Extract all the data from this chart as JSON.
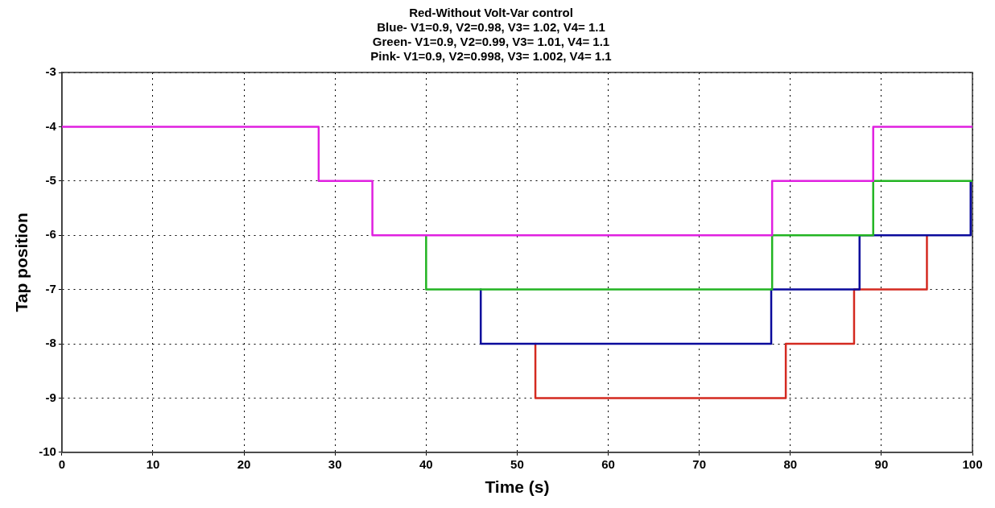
{
  "chart_data": {
    "type": "step",
    "title": [
      "Red-Without Volt-Var control",
      "Blue- V1=0.9, V2=0.98, V3= 1.02, V4= 1.1",
      "Green- V1=0.9, V2=0.99, V3= 1.01, V4= 1.1",
      "Pink- V1=0.9, V2=0.998, V3= 1.002, V4= 1.1"
    ],
    "xlabel": "Time (s)",
    "ylabel": "Tap position",
    "xlim": [
      0,
      100
    ],
    "xticks": [
      0,
      10,
      20,
      30,
      40,
      50,
      60,
      70,
      80,
      90,
      100
    ],
    "ylim": [
      -10,
      -3
    ],
    "yticks": [
      -10,
      -9,
      -8,
      -7,
      -6,
      -5,
      -4,
      -3
    ],
    "grid": true,
    "legend": false,
    "line_style": "solid",
    "marker": "none",
    "series": [
      {
        "color": "#e020e0",
        "x": [
          0,
          28.2,
          34.1,
          78,
          89.1,
          100
        ],
        "values": [
          -4,
          -5,
          -6,
          -5,
          -4,
          -4
        ]
      },
      {
        "color": "#22b422",
        "x": [
          40,
          40,
          78,
          89.1,
          100
        ],
        "values": [
          -6,
          -7,
          -6,
          -5,
          -5
        ]
      },
      {
        "color": "#0a0a9c",
        "x": [
          46,
          46,
          77.9,
          87.6,
          99.8
        ],
        "values": [
          -7,
          -8,
          -7,
          -6,
          -5
        ]
      },
      {
        "color": "#d42a20",
        "x": [
          52,
          52,
          79.5,
          87,
          95
        ],
        "values": [
          -8,
          -9,
          -8,
          -7,
          -6
        ]
      }
    ]
  }
}
